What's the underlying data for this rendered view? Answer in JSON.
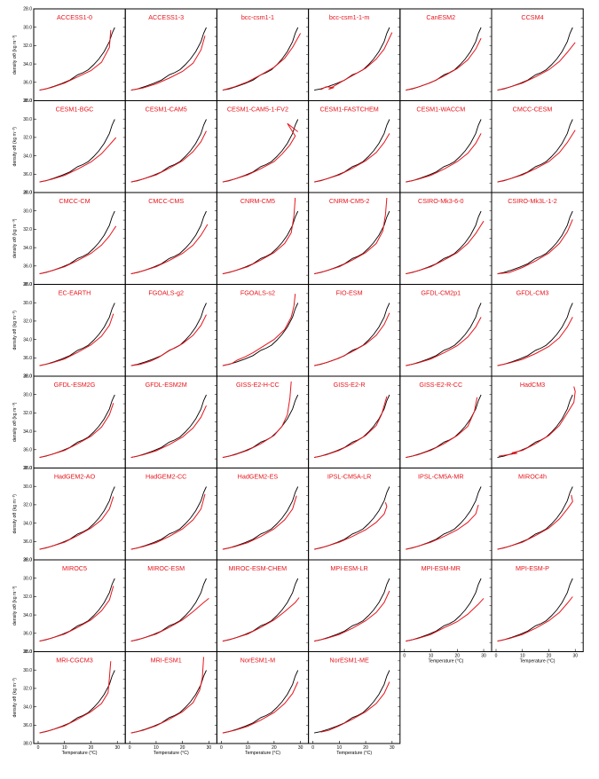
{
  "chart_data": {
    "type": "line",
    "layout": {
      "rows": 8,
      "cols": 6
    },
    "xlabel": "Temperature (°C)",
    "ylabel": "density σθ (kg m⁻³)",
    "xlim": [
      0,
      31
    ],
    "xticks": [
      0,
      10,
      20,
      30
    ],
    "ylim": [
      38.0,
      28.0
    ],
    "yticks": [
      38.0,
      36.0,
      34.0,
      32.0,
      30.0,
      28.0
    ],
    "y_inverted": true,
    "series_colors": {
      "observed": "#000000",
      "model": "#e8141b"
    },
    "models": [
      "ACCESS1-0",
      "ACCESS1-3",
      "bcc-csm1-1",
      "bcc-csm1-1-m",
      "CanESM2",
      "CCSM4",
      "CESM1-BGC",
      "CESM1-CAM5",
      "CESM1-CAM5-1-FV2",
      "CESM1-FASTCHEM",
      "CESM1-WACCM",
      "CMCC-CESM",
      "CMCC-CM",
      "CMCC-CMS",
      "CNRM-CM5",
      "CNRM-CM5-2",
      "CSIRO-Mk3-6-0",
      "CSIRO-Mk3L-1-2",
      "EC-EARTH",
      "FGOALS-g2",
      "FGOALS-s2",
      "FIO-ESM",
      "GFDL-CM2p1",
      "GFDL-CM3",
      "GFDL-ESM2G",
      "GFDL-ESM2M",
      "GISS-E2-H-CC",
      "GISS-E2-R",
      "GISS-E2-R-CC",
      "HadCM3",
      "HadGEM2-AO",
      "HadGEM2-CC",
      "HadGEM2-ES",
      "IPSL-CM5A-LR",
      "IPSL-CM5A-MR",
      "MIROC4h",
      "MIROC5",
      "MIROC-ESM",
      "MIROC-ESM-CHEM",
      "MPI-ESM-LR",
      "MPI-ESM-MR",
      "MPI-ESM-P",
      "MRI-CGCM3",
      "MRI-ESM1",
      "NorESM1-M",
      "NorESM1-ME"
    ],
    "observed": {
      "x": [
        0.5,
        3,
        6,
        9,
        12,
        15,
        17,
        19,
        21,
        23,
        25,
        27,
        28,
        29
      ],
      "y": [
        37.15,
        37.0,
        36.7,
        36.35,
        35.95,
        35.3,
        35.05,
        34.7,
        34.1,
        33.4,
        32.5,
        31.3,
        30.3,
        29.6
      ]
    },
    "model_curves": [
      {
        "x": [
          0.5,
          5,
          10,
          15,
          20,
          24,
          27,
          27.5
        ],
        "y": [
          37.15,
          36.85,
          36.3,
          35.55,
          34.8,
          33.8,
          32.0,
          29.9
        ]
      },
      {
        "x": [
          0.5,
          5,
          10,
          15,
          20,
          24,
          27,
          28.5
        ],
        "y": [
          37.15,
          36.9,
          36.4,
          35.7,
          34.9,
          33.9,
          32.3,
          30.6
        ]
      },
      {
        "x": [
          0.5,
          5,
          10,
          15,
          20,
          24,
          27,
          30
        ],
        "y": [
          37.15,
          36.75,
          36.15,
          35.3,
          34.4,
          33.3,
          32.0,
          30.3
        ]
      },
      {
        "x": [
          3,
          5,
          8,
          6,
          10,
          15,
          20,
          24,
          27,
          30
        ],
        "y": [
          37.1,
          36.75,
          36.85,
          37.05,
          36.3,
          35.4,
          34.5,
          33.4,
          32.2,
          30.2
        ]
      },
      {
        "x": [
          0.5,
          5,
          10,
          15,
          20,
          24,
          27,
          29
        ],
        "y": [
          37.15,
          36.8,
          36.25,
          35.45,
          34.55,
          33.5,
          32.2,
          30.9
        ]
      },
      {
        "x": [
          0.5,
          5,
          10,
          15,
          20,
          24,
          27,
          30
        ],
        "y": [
          37.15,
          36.8,
          36.3,
          35.55,
          34.7,
          33.7,
          32.6,
          31.4
        ]
      },
      {
        "x": [
          0.5,
          5,
          10,
          15,
          20,
          24,
          27,
          29.5
        ],
        "y": [
          37.15,
          36.85,
          36.35,
          35.6,
          34.75,
          33.75,
          32.7,
          31.8
        ]
      },
      {
        "x": [
          0.5,
          5,
          10,
          15,
          20,
          24,
          27,
          29
        ],
        "y": [
          37.15,
          36.8,
          36.3,
          35.5,
          34.6,
          33.5,
          32.3,
          31.0
        ]
      },
      {
        "x": [
          0.5,
          5,
          10,
          15,
          20,
          23,
          26,
          28,
          25,
          29
        ],
        "y": [
          37.15,
          36.8,
          36.3,
          35.55,
          34.7,
          33.8,
          32.7,
          31.6,
          30.1,
          31.1
        ]
      },
      {
        "x": [
          0.5,
          5,
          10,
          15,
          20,
          24,
          27,
          29
        ],
        "y": [
          37.15,
          36.8,
          36.3,
          35.5,
          34.6,
          33.6,
          32.4,
          31.3
        ]
      },
      {
        "x": [
          0.5,
          5,
          10,
          15,
          20,
          24,
          27,
          29
        ],
        "y": [
          37.15,
          36.85,
          36.35,
          35.6,
          34.7,
          33.7,
          32.5,
          31.3
        ]
      },
      {
        "x": [
          0.5,
          5,
          10,
          15,
          20,
          24,
          27,
          30
        ],
        "y": [
          37.15,
          36.8,
          36.3,
          35.55,
          34.7,
          33.6,
          32.4,
          30.9
        ]
      },
      {
        "x": [
          0.5,
          5,
          10,
          15,
          20,
          24,
          27,
          29.5
        ],
        "y": [
          37.15,
          36.8,
          36.3,
          35.55,
          34.7,
          33.7,
          32.6,
          31.4
        ]
      },
      {
        "x": [
          0.5,
          5,
          10,
          15,
          20,
          24,
          27,
          29.5
        ],
        "y": [
          37.15,
          36.8,
          36.3,
          35.55,
          34.7,
          33.7,
          32.5,
          31.2
        ]
      },
      {
        "x": [
          0.5,
          5,
          10,
          15,
          20,
          24,
          26.5,
          27.5,
          28
        ],
        "y": [
          37.15,
          36.8,
          36.3,
          35.5,
          34.6,
          33.5,
          32.2,
          30.2,
          28.0
        ]
      },
      {
        "x": [
          0.5,
          5,
          10,
          15,
          20,
          24,
          26.5,
          27.5,
          28
        ],
        "y": [
          37.15,
          36.8,
          36.3,
          35.5,
          34.6,
          33.5,
          32.0,
          30.0,
          28.0
        ]
      },
      {
        "x": [
          0.5,
          5,
          10,
          15,
          20,
          24,
          27,
          30
        ],
        "y": [
          37.15,
          36.8,
          36.3,
          35.5,
          34.6,
          33.5,
          32.3,
          30.8
        ]
      },
      {
        "x": [
          0.5,
          5,
          10,
          15,
          20,
          24,
          27,
          29
        ],
        "y": [
          37.15,
          37.0,
          36.4,
          35.6,
          34.65,
          33.5,
          32.1,
          30.6
        ]
      },
      {
        "x": [
          0.5,
          5,
          10,
          15,
          20,
          24,
          27,
          28.5
        ],
        "y": [
          37.15,
          36.85,
          36.35,
          35.55,
          34.65,
          33.6,
          32.3,
          30.9
        ]
      },
      {
        "x": [
          0.5,
          4,
          8,
          11,
          15,
          20,
          24,
          27,
          29
        ],
        "y": [
          37.15,
          37.0,
          36.6,
          36.15,
          35.35,
          34.5,
          33.5,
          32.3,
          31.0
        ]
      },
      {
        "x": [
          0.5,
          4,
          6,
          9,
          12,
          15,
          20,
          24,
          26.5,
          27.5,
          28
        ],
        "y": [
          37.15,
          36.9,
          36.5,
          36.1,
          35.6,
          35.0,
          34.0,
          32.8,
          31.3,
          30.0,
          28.5
        ]
      },
      {
        "x": [
          0.5,
          5,
          10,
          15,
          20,
          24,
          27,
          29
        ],
        "y": [
          37.15,
          36.8,
          36.25,
          35.45,
          34.55,
          33.5,
          32.2,
          30.8
        ]
      },
      {
        "x": [
          0.5,
          5,
          10,
          15,
          20,
          24,
          27,
          29
        ],
        "y": [
          37.15,
          36.85,
          36.35,
          35.6,
          34.75,
          33.7,
          32.5,
          31.3
        ]
      },
      {
        "x": [
          0.5,
          5,
          10,
          15,
          20,
          24,
          27,
          29
        ],
        "y": [
          37.15,
          36.85,
          36.4,
          35.7,
          34.85,
          33.8,
          32.5,
          31.3
        ]
      },
      {
        "x": [
          0.5,
          5,
          10,
          15,
          20,
          24,
          27,
          28.5
        ],
        "y": [
          37.15,
          36.8,
          36.3,
          35.5,
          34.6,
          33.5,
          32.0,
          30.6
        ]
      },
      {
        "x": [
          0.5,
          5,
          10,
          15,
          20,
          24,
          27,
          29
        ],
        "y": [
          37.15,
          36.85,
          36.35,
          35.6,
          34.7,
          33.6,
          32.3,
          30.9
        ]
      },
      {
        "x": [
          0.5,
          5,
          10,
          15,
          20,
          23,
          25,
          26,
          26.5
        ],
        "y": [
          37.15,
          36.85,
          36.3,
          35.5,
          34.5,
          33.4,
          32.0,
          30.0,
          28.0
        ]
      },
      {
        "x": [
          0.5,
          5,
          10,
          15,
          20,
          24,
          26,
          28
        ],
        "y": [
          37.15,
          36.85,
          36.3,
          35.5,
          34.5,
          33.3,
          32.0,
          29.8
        ]
      },
      {
        "x": [
          0.5,
          5,
          10,
          15,
          20,
          24,
          26.5,
          27.5
        ],
        "y": [
          37.15,
          36.85,
          36.3,
          35.5,
          34.5,
          33.4,
          31.6,
          29.9
        ]
      },
      {
        "x": [
          1,
          8,
          6,
          10,
          15,
          20,
          24,
          27,
          29.5,
          30,
          29.5
        ],
        "y": [
          37.0,
          36.65,
          36.6,
          36.3,
          35.5,
          34.5,
          33.3,
          31.8,
          30.5,
          29.2,
          28.6
        ]
      },
      {
        "x": [
          0.5,
          5,
          10,
          15,
          20,
          24,
          27,
          28.5
        ],
        "y": [
          37.15,
          36.8,
          36.3,
          35.5,
          34.6,
          33.6,
          32.3,
          30.8
        ]
      },
      {
        "x": [
          0.5,
          5,
          10,
          15,
          20,
          24,
          27,
          28.5
        ],
        "y": [
          37.15,
          36.85,
          36.35,
          35.6,
          34.7,
          33.6,
          32.3,
          30.5
        ]
      },
      {
        "x": [
          0.5,
          5,
          10,
          15,
          20,
          24,
          27,
          28.5
        ],
        "y": [
          37.15,
          36.85,
          36.35,
          35.6,
          34.7,
          33.6,
          32.3,
          30.7
        ]
      },
      {
        "x": [
          0.5,
          5,
          10,
          15,
          20,
          24,
          27,
          28,
          27.5
        ],
        "y": [
          37.15,
          36.8,
          36.3,
          35.6,
          34.8,
          33.9,
          32.9,
          32.0,
          31.5
        ]
      },
      {
        "x": [
          0.5,
          5,
          10,
          15,
          20,
          24,
          27,
          28
        ],
        "y": [
          37.15,
          36.8,
          36.3,
          35.6,
          34.8,
          33.9,
          32.9,
          31.8
        ]
      },
      {
        "x": [
          0.5,
          5,
          10,
          15,
          20,
          24,
          27,
          29,
          28.5
        ],
        "y": [
          37.15,
          36.8,
          36.3,
          35.5,
          34.6,
          33.5,
          32.3,
          31.4,
          30.6
        ]
      },
      {
        "x": [
          0.5,
          5,
          10,
          15,
          20,
          24,
          27,
          28.5
        ],
        "y": [
          37.15,
          36.8,
          36.3,
          35.5,
          34.6,
          33.5,
          32.2,
          30.5
        ]
      },
      {
        "x": [
          0.5,
          5,
          10,
          15,
          20,
          24,
          28,
          30
        ],
        "y": [
          37.15,
          36.8,
          36.3,
          35.5,
          34.6,
          33.6,
          32.5,
          32.0
        ]
      },
      {
        "x": [
          0.5,
          5,
          10,
          15,
          20,
          24,
          28,
          29.5
        ],
        "y": [
          37.15,
          36.8,
          36.3,
          35.5,
          34.6,
          33.6,
          32.5,
          31.9
        ]
      },
      {
        "x": [
          0.5,
          5,
          10,
          15,
          20,
          24,
          27,
          29
        ],
        "y": [
          37.15,
          36.85,
          36.35,
          35.6,
          34.7,
          33.7,
          32.5,
          31.1
        ]
      },
      {
        "x": [
          0.5,
          5,
          10,
          15,
          20,
          24,
          28,
          30
        ],
        "y": [
          37.15,
          36.85,
          36.35,
          35.55,
          34.8,
          33.9,
          32.7,
          32.0
        ]
      },
      {
        "x": [
          0.5,
          5,
          10,
          15,
          20,
          24,
          27,
          29
        ],
        "y": [
          37.15,
          36.85,
          36.35,
          35.6,
          34.7,
          33.7,
          32.6,
          31.8
        ]
      },
      {
        "x": [
          0.5,
          5,
          10,
          15,
          20,
          24,
          26.5,
          27,
          27.5
        ],
        "y": [
          37.15,
          36.8,
          36.3,
          35.5,
          34.6,
          33.6,
          32.3,
          30.5,
          28.5
        ]
      },
      {
        "x": [
          0.5,
          5,
          10,
          15,
          20,
          24,
          26.5,
          27.5,
          28
        ],
        "y": [
          37.15,
          36.85,
          36.3,
          35.5,
          34.6,
          33.5,
          32.0,
          30.5,
          28.0
        ]
      },
      {
        "x": [
          0.5,
          5,
          10,
          15,
          20,
          24,
          27,
          29
        ],
        "y": [
          37.15,
          36.85,
          36.35,
          35.6,
          34.7,
          33.6,
          32.4,
          31.0
        ]
      },
      {
        "x": [
          3,
          6,
          10,
          15,
          20,
          24,
          27,
          29
        ],
        "y": [
          37.05,
          36.85,
          36.3,
          35.5,
          34.6,
          33.6,
          32.4,
          31.0
        ]
      }
    ]
  }
}
